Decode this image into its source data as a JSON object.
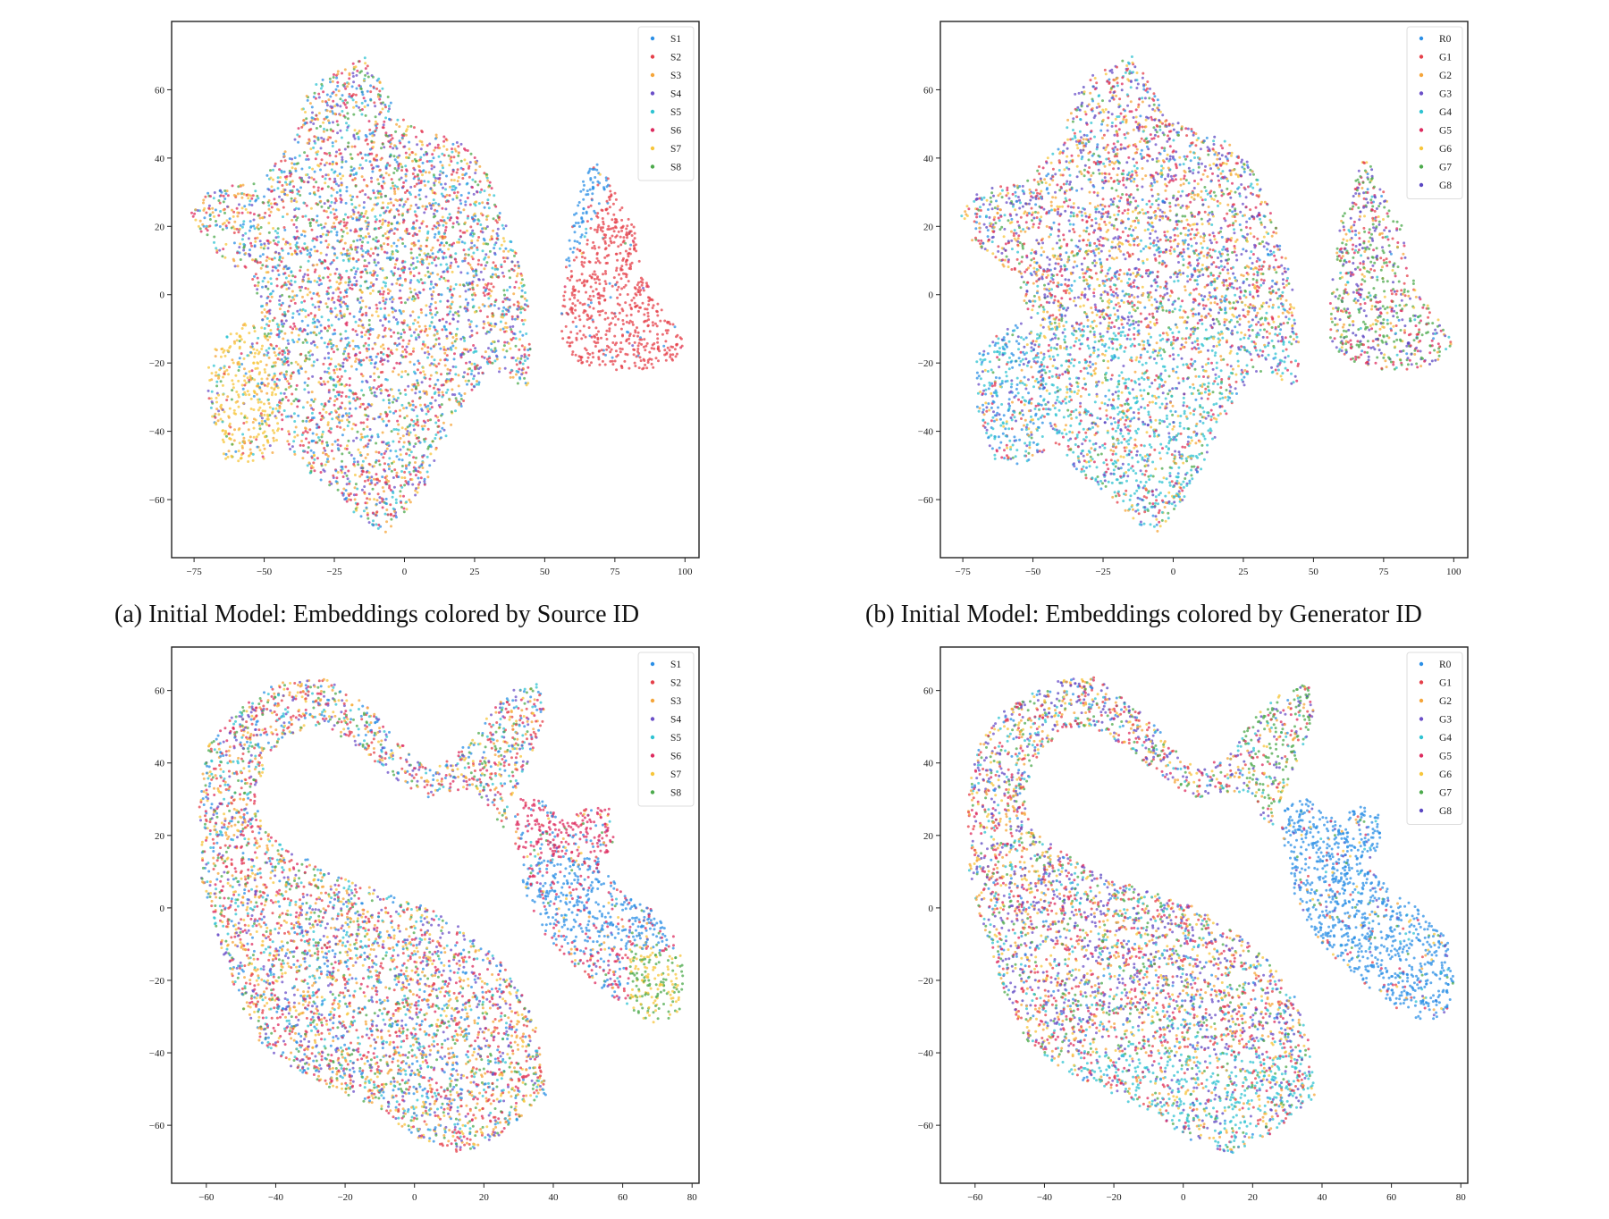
{
  "colors": {
    "blue": "#2b8fe6",
    "red": "#e5404a",
    "orange": "#f5a53a",
    "purple": "#6b4fc8",
    "cyan": "#2fc3d2",
    "crimson": "#dd2b5f",
    "yellow": "#f7c63b",
    "green": "#4caa4c",
    "indigo": "#5a47c2"
  },
  "captions": {
    "a": "(a) Initial Model: Embeddings colored by Source ID",
    "b": "(b) Initial Model: Embeddings colored by Generator ID"
  },
  "chart_data": [
    {
      "id": "a",
      "type": "scatter",
      "title": "",
      "xlabel": "",
      "ylabel": "",
      "xlim": [
        -83,
        105
      ],
      "ylim": [
        -77,
        80
      ],
      "xticks": [
        -75,
        -50,
        -25,
        0,
        25,
        50,
        75,
        100
      ],
      "yticks": [
        -60,
        -40,
        -20,
        0,
        20,
        40,
        60
      ],
      "legend_position": "top-right",
      "legend": [
        {
          "label": "S1",
          "color": "#2b8fe6"
        },
        {
          "label": "S2",
          "color": "#e5404a"
        },
        {
          "label": "S3",
          "color": "#f5a53a"
        },
        {
          "label": "S4",
          "color": "#6b4fc8"
        },
        {
          "label": "S5",
          "color": "#2fc3d2"
        },
        {
          "label": "S6",
          "color": "#dd2b5f"
        },
        {
          "label": "S7",
          "color": "#f7c63b"
        },
        {
          "label": "S8",
          "color": "#4caa4c"
        }
      ],
      "clusters": [
        {
          "region": "main-blob",
          "mix": "all S1-S8 mixed",
          "x_range": [
            -75,
            45
          ],
          "y_range": [
            -70,
            72
          ]
        },
        {
          "region": "right-island",
          "mix": "S1 upper-left, S2 lower-right",
          "x_range": [
            55,
            100
          ],
          "y_range": [
            -23,
            40
          ]
        },
        {
          "region": "lower-left",
          "mix": "S7 dominant",
          "x_range": [
            -70,
            -45
          ],
          "y_range": [
            -50,
            -10
          ]
        }
      ]
    },
    {
      "id": "b",
      "type": "scatter",
      "title": "",
      "xlabel": "",
      "ylabel": "",
      "xlim": [
        -83,
        105
      ],
      "ylim": [
        -77,
        80
      ],
      "xticks": [
        -75,
        -50,
        -25,
        0,
        25,
        50,
        75,
        100
      ],
      "yticks": [
        -60,
        -40,
        -20,
        0,
        20,
        40,
        60
      ],
      "legend_position": "top-right",
      "legend": [
        {
          "label": "R0",
          "color": "#2b8fe6"
        },
        {
          "label": "G1",
          "color": "#e5404a"
        },
        {
          "label": "G2",
          "color": "#f5a53a"
        },
        {
          "label": "G3",
          "color": "#6b4fc8"
        },
        {
          "label": "G4",
          "color": "#2fc3d2"
        },
        {
          "label": "G5",
          "color": "#dd2b5f"
        },
        {
          "label": "G6",
          "color": "#f7c63b"
        },
        {
          "label": "G7",
          "color": "#4caa4c"
        },
        {
          "label": "G8",
          "color": "#5a47c2"
        }
      ],
      "clusters": [
        {
          "region": "main-blob",
          "mix": "all R0-G8 mixed, G4 heavy in lower half",
          "x_range": [
            -75,
            45
          ],
          "y_range": [
            -70,
            72
          ]
        },
        {
          "region": "right-island",
          "mix": "G-mix, mostly G7",
          "x_range": [
            55,
            100
          ],
          "y_range": [
            -23,
            40
          ]
        },
        {
          "region": "lower-left",
          "mix": "R0/G4 mixed",
          "x_range": [
            -70,
            -45
          ],
          "y_range": [
            -50,
            -10
          ]
        }
      ]
    },
    {
      "id": "c",
      "type": "scatter",
      "title": "",
      "xlabel": "",
      "ylabel": "",
      "xlim": [
        -70,
        82
      ],
      "ylim": [
        -76,
        72
      ],
      "xticks": [
        -60,
        -40,
        -20,
        0,
        20,
        40,
        60,
        80
      ],
      "yticks": [
        -60,
        -40,
        -20,
        0,
        20,
        40,
        60
      ],
      "legend_position": "top-right",
      "legend": [
        {
          "label": "S1",
          "color": "#2b8fe6"
        },
        {
          "label": "S2",
          "color": "#e5404a"
        },
        {
          "label": "S3",
          "color": "#f5a53a"
        },
        {
          "label": "S4",
          "color": "#6b4fc8"
        },
        {
          "label": "S5",
          "color": "#2fc3d2"
        },
        {
          "label": "S6",
          "color": "#dd2b5f"
        },
        {
          "label": "S7",
          "color": "#f7c63b"
        },
        {
          "label": "S8",
          "color": "#4caa4c"
        }
      ],
      "clusters": [
        {
          "region": "arch-and-diagonal-band",
          "mix": "all S1-S8 mixed",
          "x_range": [
            -62,
            40
          ],
          "y_range": [
            -68,
            66
          ]
        },
        {
          "region": "right-tail",
          "mix": "S6 upper, S1 middle, S7/S8 lower-right end",
          "x_range": [
            28,
            78
          ],
          "y_range": [
            -32,
            30
          ]
        }
      ]
    },
    {
      "id": "d",
      "type": "scatter",
      "title": "",
      "xlabel": "",
      "ylabel": "",
      "xlim": [
        -70,
        82
      ],
      "ylim": [
        -76,
        72
      ],
      "xticks": [
        -60,
        -40,
        -20,
        0,
        20,
        40,
        60,
        80
      ],
      "yticks": [
        -60,
        -40,
        -20,
        0,
        20,
        40,
        60
      ],
      "legend_position": "top-right",
      "legend": [
        {
          "label": "R0",
          "color": "#2b8fe6"
        },
        {
          "label": "G1",
          "color": "#e5404a"
        },
        {
          "label": "G2",
          "color": "#f5a53a"
        },
        {
          "label": "G3",
          "color": "#6b4fc8"
        },
        {
          "label": "G4",
          "color": "#2fc3d2"
        },
        {
          "label": "G5",
          "color": "#dd2b5f"
        },
        {
          "label": "G6",
          "color": "#f7c63b"
        },
        {
          "label": "G7",
          "color": "#4caa4c"
        },
        {
          "label": "G8",
          "color": "#5a47c2"
        }
      ],
      "clusters": [
        {
          "region": "arch-and-diagonal-band",
          "mix": "G1-G8 mixed, G7 along right arm",
          "x_range": [
            -62,
            40
          ],
          "y_range": [
            -68,
            66
          ]
        },
        {
          "region": "right-tail",
          "mix": "R0 dominant",
          "x_range": [
            28,
            78
          ],
          "y_range": [
            -32,
            30
          ]
        }
      ]
    }
  ]
}
